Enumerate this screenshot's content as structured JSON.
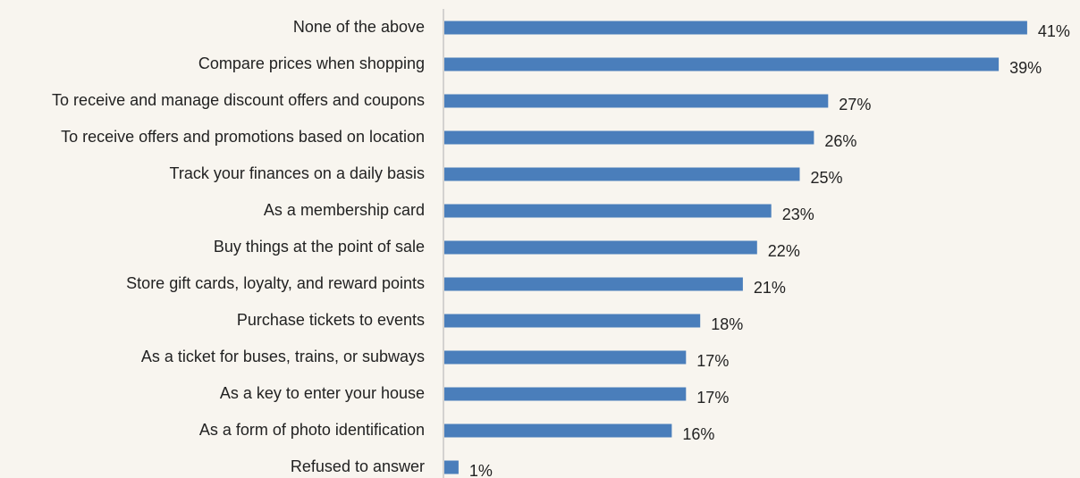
{
  "chart_data": {
    "type": "bar",
    "orientation": "horizontal",
    "categories": [
      "None of the above",
      "Compare prices when shopping",
      "To receive and manage discount offers and coupons",
      "To receive offers and promotions based on location",
      "Track your finances on a daily basis",
      "As a membership card",
      "Buy things at the point of sale",
      "Store gift cards, loyalty, and reward points",
      "Purchase tickets to events",
      "As a ticket for buses, trains, or subways",
      "As a key to enter your house",
      "As a form of photo identification",
      "Refused to answer"
    ],
    "values": [
      41,
      39,
      27,
      26,
      25,
      23,
      22,
      21,
      18,
      17,
      17,
      16,
      1
    ],
    "value_labels": [
      "41%",
      "39%",
      "27%",
      "26%",
      "25%",
      "23%",
      "22%",
      "21%",
      "18%",
      "17%",
      "17%",
      "16%",
      "1%"
    ],
    "color": "#4a7ebb"
  }
}
